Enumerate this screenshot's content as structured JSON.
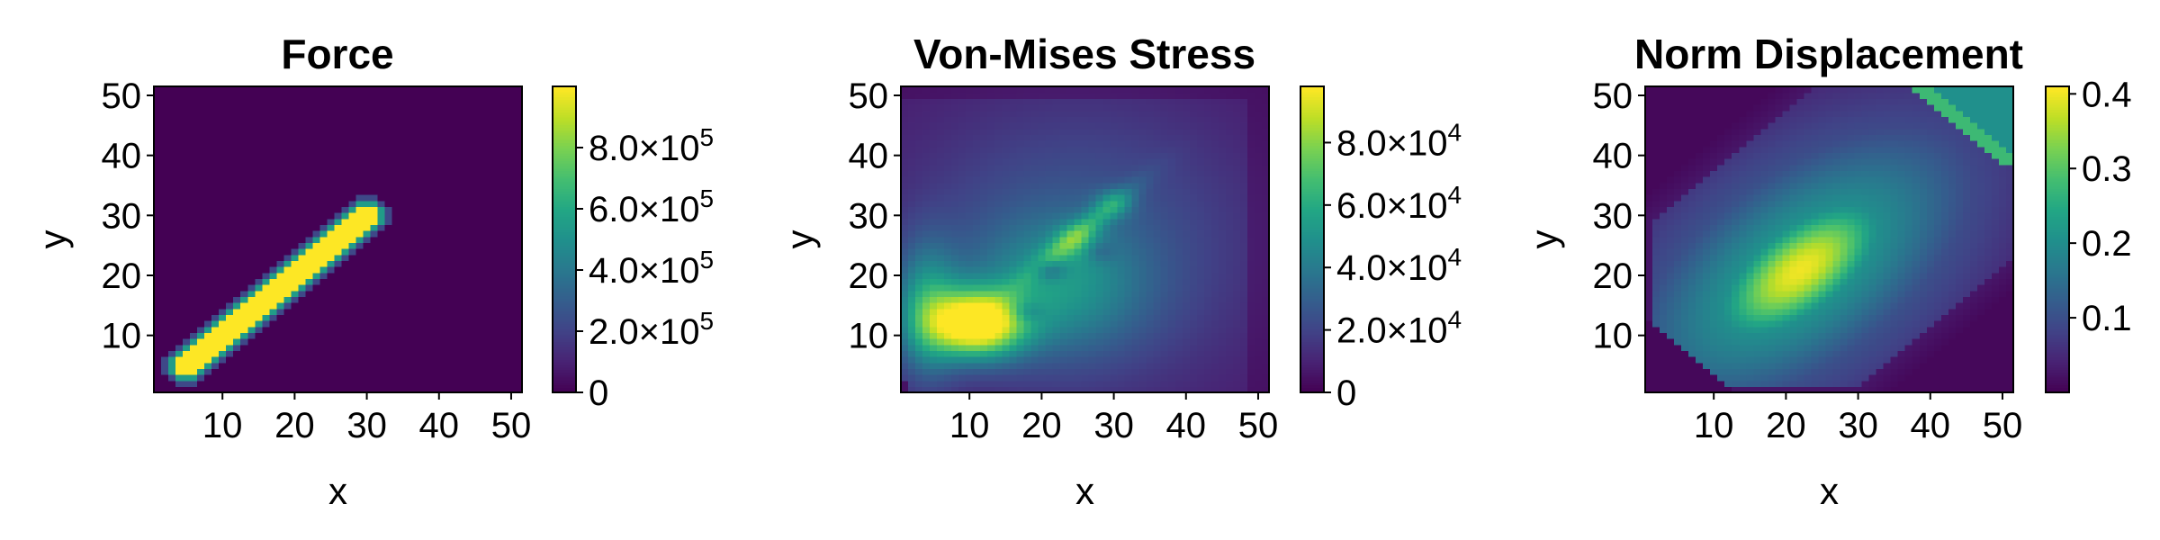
{
  "chart_data": [
    {
      "type": "heatmap",
      "title": "Force",
      "xlabel": "x",
      "ylabel": "y",
      "xlim": [
        0.5,
        51.5
      ],
      "ylim": [
        0.5,
        51.5
      ],
      "grid_size": 51,
      "xticks": [
        10,
        20,
        30,
        40,
        50
      ],
      "yticks": [
        10,
        20,
        30,
        40,
        50
      ],
      "xtick_labels": [
        "10",
        "20",
        "30",
        "40",
        "50"
      ],
      "ytick_labels": [
        "10",
        "20",
        "30",
        "40",
        "50"
      ],
      "colormap": "viridis",
      "colorbar": {
        "range": [
          0,
          1000000
        ],
        "ticks": [
          0,
          200000,
          400000,
          600000,
          800000
        ],
        "labels": [
          {
            "mantissa": "0",
            "exp": ""
          },
          {
            "mantissa": "2.0×10",
            "exp": "5"
          },
          {
            "mantissa": "4.0×10",
            "exp": "5"
          },
          {
            "mantissa": "6.0×10",
            "exp": "5"
          },
          {
            "mantissa": "8.0×10",
            "exp": "5"
          }
        ]
      },
      "field": {
        "kind": "band",
        "description_free": true,
        "line_start": [
          5,
          5
        ],
        "line_end": [
          30,
          30
        ],
        "half_width": 2.6,
        "peak": 1000000,
        "background": 0
      }
    },
    {
      "type": "heatmap",
      "title": "Von-Mises Stress",
      "xlabel": "x",
      "ylabel": "y",
      "xlim": [
        0.5,
        51.5
      ],
      "ylim": [
        0.5,
        51.5
      ],
      "grid_size": 51,
      "xticks": [
        10,
        20,
        30,
        40,
        50
      ],
      "yticks": [
        10,
        20,
        30,
        40,
        50
      ],
      "xtick_labels": [
        "10",
        "20",
        "30",
        "40",
        "50"
      ],
      "ytick_labels": [
        "10",
        "20",
        "30",
        "40",
        "50"
      ],
      "colormap": "viridis",
      "colorbar": {
        "range": [
          0,
          98000
        ],
        "ticks": [
          0,
          20000,
          40000,
          60000,
          80000
        ],
        "labels": [
          {
            "mantissa": "0",
            "exp": ""
          },
          {
            "mantissa": "2.0×10",
            "exp": "4"
          },
          {
            "mantissa": "4.0×10",
            "exp": "4"
          },
          {
            "mantissa": "6.0×10",
            "exp": "4"
          },
          {
            "mantissa": "8.0×10",
            "exp": "4"
          }
        ]
      },
      "field": {
        "kind": "stress",
        "hotspot": [
          11,
          12
        ],
        "peak": 95000
      }
    },
    {
      "type": "heatmap",
      "title": "Norm Displacement",
      "xlabel": "x",
      "ylabel": "y",
      "xlim": [
        0.5,
        51.5
      ],
      "ylim": [
        0.5,
        51.5
      ],
      "grid_size": 51,
      "xticks": [
        10,
        20,
        30,
        40,
        50
      ],
      "yticks": [
        10,
        20,
        30,
        40,
        50
      ],
      "xtick_labels": [
        "10",
        "20",
        "30",
        "40",
        "50"
      ],
      "ytick_labels": [
        "10",
        "20",
        "30",
        "40",
        "50"
      ],
      "colormap": "viridis",
      "colorbar": {
        "range": [
          0,
          0.41
        ],
        "ticks": [
          0.1,
          0.2,
          0.3,
          0.4
        ],
        "labels": [
          {
            "mantissa": "0.1",
            "exp": ""
          },
          {
            "mantissa": "0.2",
            "exp": ""
          },
          {
            "mantissa": "0.3",
            "exp": ""
          },
          {
            "mantissa": "0.4",
            "exp": ""
          }
        ]
      },
      "field": {
        "kind": "displacement",
        "center": [
          22,
          22
        ],
        "peak": 0.41
      }
    }
  ]
}
